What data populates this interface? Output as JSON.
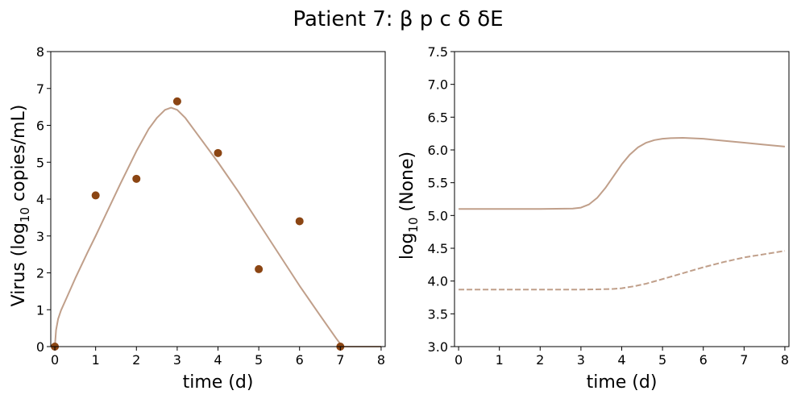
{
  "figure": {
    "title": "Patient 7: β p c δ δE"
  },
  "colors": {
    "model": "#c09f8a",
    "observed": "#8b4513",
    "axis": "#000000"
  },
  "chart_data": [
    {
      "type": "line",
      "xlabel": "time (d)",
      "ylabel_main": "Virus (log",
      "ylabel_sub": "10",
      "ylabel_tail": " copies/mL)",
      "xlim": [
        -0.1,
        8.1
      ],
      "ylim": [
        0,
        8
      ],
      "xticks": [
        0,
        1,
        2,
        3,
        4,
        5,
        6,
        7,
        8
      ],
      "yticks": [
        0,
        1,
        2,
        3,
        4,
        5,
        6,
        7,
        8
      ],
      "grid": false,
      "series": [
        {
          "kind": "line",
          "style": "solid",
          "x": [
            0,
            0.03,
            0.08,
            0.15,
            0.3,
            0.5,
            0.8,
            1.0,
            1.3,
            1.6,
            2.0,
            2.3,
            2.5,
            2.7,
            2.85,
            3.0,
            3.2,
            3.5,
            3.8,
            4.0,
            4.5,
            5.0,
            5.5,
            6.0,
            6.5,
            6.9,
            7.05,
            7.1,
            7.5,
            8.0
          ],
          "y": [
            0,
            0.45,
            0.75,
            0.98,
            1.35,
            1.85,
            2.55,
            3.0,
            3.7,
            4.4,
            5.3,
            5.9,
            6.2,
            6.42,
            6.48,
            6.42,
            6.2,
            5.75,
            5.3,
            5.0,
            4.2,
            3.35,
            2.5,
            1.65,
            0.85,
            0.22,
            0.0,
            0.0,
            0.0,
            0.0
          ]
        },
        {
          "kind": "scatter",
          "x": [
            0,
            1,
            2,
            3,
            4,
            5,
            6,
            7
          ],
          "y": [
            0,
            4.1,
            4.55,
            6.65,
            5.25,
            2.1,
            3.4,
            0
          ]
        }
      ]
    },
    {
      "type": "line",
      "xlabel": "time (d)",
      "ylabel_main": "log",
      "ylabel_sub": "10",
      "ylabel_tail": " (None)",
      "xlim": [
        -0.1,
        8.1
      ],
      "ylim": [
        3.0,
        7.5
      ],
      "xticks": [
        0,
        1,
        2,
        3,
        4,
        5,
        6,
        7,
        8
      ],
      "yticks": [
        3.0,
        3.5,
        4.0,
        4.5,
        5.0,
        5.5,
        6.0,
        6.5,
        7.0,
        7.5
      ],
      "ytick_labels": [
        "3.0",
        "3.5",
        "4.0",
        "4.5",
        "5.0",
        "5.5",
        "6.0",
        "6.5",
        "7.0",
        "7.5"
      ],
      "grid": false,
      "series": [
        {
          "kind": "line",
          "style": "solid",
          "x": [
            0,
            1,
            2,
            2.8,
            3.0,
            3.2,
            3.4,
            3.6,
            3.8,
            4.0,
            4.2,
            4.4,
            4.6,
            4.8,
            5.0,
            5.2,
            5.5,
            6.0,
            6.5,
            7.0,
            7.5,
            8.0
          ],
          "y": [
            5.1,
            5.1,
            5.1,
            5.105,
            5.12,
            5.17,
            5.27,
            5.42,
            5.6,
            5.78,
            5.93,
            6.04,
            6.11,
            6.15,
            6.17,
            6.18,
            6.185,
            6.17,
            6.14,
            6.11,
            6.08,
            6.05
          ]
        },
        {
          "kind": "line",
          "style": "dashed",
          "x": [
            0,
            1,
            2,
            3,
            3.5,
            3.8,
            4.0,
            4.3,
            4.6,
            5.0,
            5.5,
            6.0,
            6.5,
            7.0,
            7.5,
            8.0
          ],
          "y": [
            3.87,
            3.87,
            3.87,
            3.87,
            3.875,
            3.88,
            3.89,
            3.92,
            3.96,
            4.03,
            4.12,
            4.21,
            4.29,
            4.36,
            4.41,
            4.46
          ]
        }
      ]
    }
  ]
}
